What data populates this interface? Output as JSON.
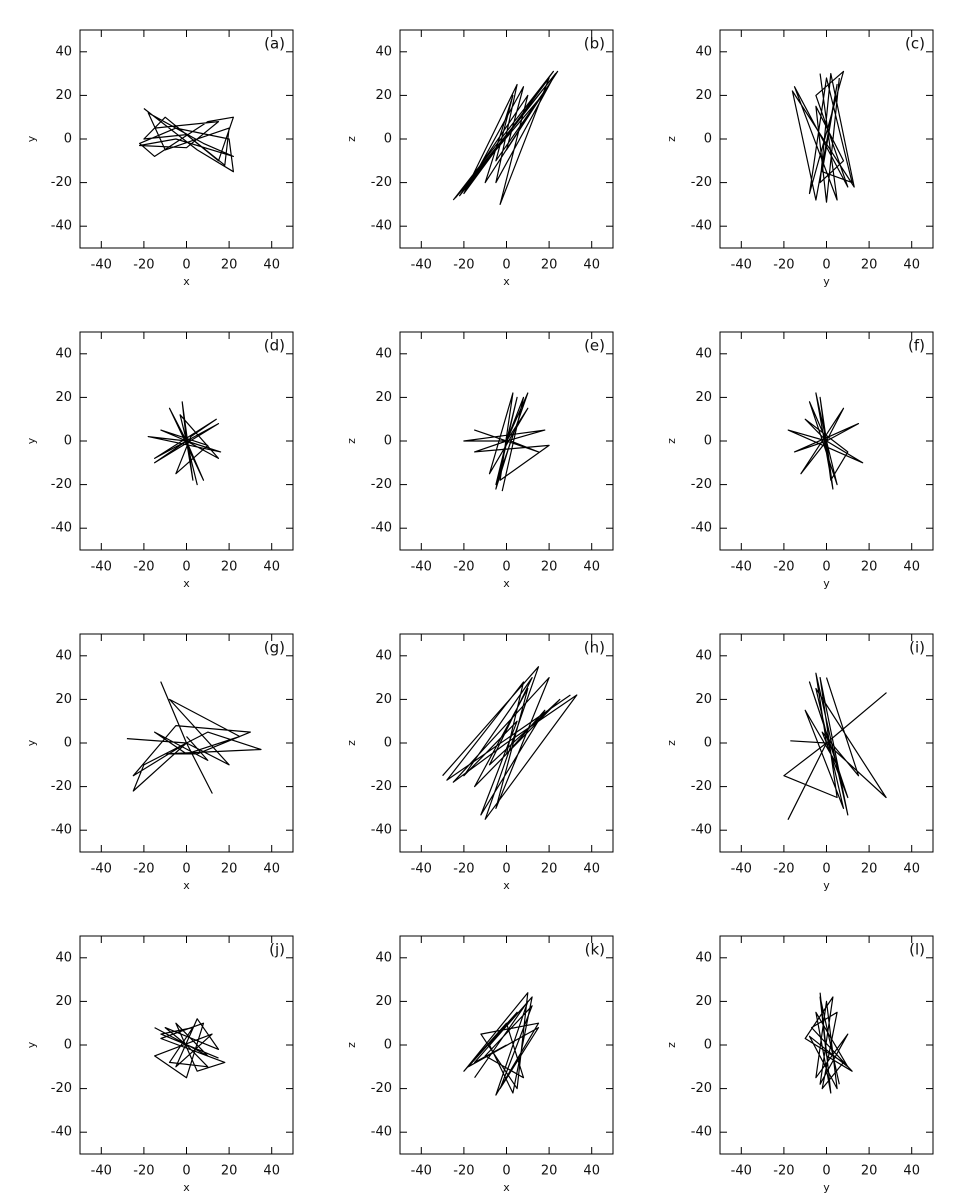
{
  "chart_data": [
    {
      "type": "line",
      "annotation": "(a)",
      "xlabel": "x",
      "ylabel": "y",
      "color": "#000000",
      "xlim": [
        -50,
        50
      ],
      "ylim": [
        -50,
        50
      ],
      "xticks": [
        -40,
        -20,
        0,
        20,
        40
      ],
      "yticks": [
        -40,
        -20,
        0,
        20,
        40
      ],
      "x": [
        -20,
        5,
        22,
        20,
        -5,
        -22,
        -15,
        10,
        22,
        15,
        -10,
        -20,
        0,
        18,
        20,
        -10,
        -18,
        8,
        22,
        -5,
        -22,
        0,
        15,
        -15
      ],
      "values": [
        14,
        -5,
        -15,
        0,
        5,
        -2,
        -8,
        8,
        10,
        -10,
        10,
        0,
        2,
        -12,
        5,
        -5,
        12,
        -2,
        -8,
        0,
        -3,
        -4,
        8,
        5
      ]
    },
    {
      "type": "line",
      "annotation": "(b)",
      "xlabel": "x",
      "ylabel": "z",
      "color": "#000000",
      "xlim": [
        -50,
        50
      ],
      "ylim": [
        -50,
        50
      ],
      "xticks": [
        -40,
        -20,
        0,
        20,
        40
      ],
      "yticks": [
        -40,
        -20,
        0,
        20,
        40
      ],
      "x": [
        -25,
        22,
        -20,
        5,
        -5,
        23,
        -22,
        10,
        -3,
        20,
        -18,
        8,
        0,
        24,
        -24,
        15,
        -10,
        3,
        -5,
        20
      ],
      "values": [
        -28,
        31,
        -25,
        25,
        -20,
        30,
        -26,
        20,
        -30,
        28,
        -22,
        24,
        -5,
        31,
        -27,
        18,
        -20,
        20,
        -10,
        25
      ]
    },
    {
      "type": "line",
      "annotation": "(c)",
      "xlabel": "y",
      "ylabel": "z",
      "color": "#000000",
      "xlim": [
        -50,
        50
      ],
      "ylim": [
        -50,
        50
      ],
      "xticks": [
        -40,
        -20,
        0,
        20,
        40
      ],
      "yticks": [
        -40,
        -20,
        0,
        20,
        40
      ],
      "x": [
        -3,
        5,
        -15,
        10,
        -5,
        8,
        -8,
        0,
        12,
        -2,
        5,
        -5,
        -16,
        13,
        2,
        -3,
        8,
        -5,
        0,
        6
      ],
      "values": [
        30,
        -28,
        24,
        -22,
        20,
        31,
        -25,
        28,
        -20,
        -15,
        25,
        -28,
        22,
        -22,
        30,
        -20,
        -10,
        15,
        -29,
        28
      ]
    },
    {
      "type": "line",
      "annotation": "(d)",
      "xlabel": "x",
      "ylabel": "y",
      "color": "#000000",
      "xlim": [
        -50,
        50
      ],
      "ylim": [
        -50,
        50
      ],
      "xticks": [
        -40,
        -20,
        0,
        20,
        40
      ],
      "yticks": [
        -40,
        -20,
        0,
        20,
        40
      ],
      "x": [
        0,
        -15,
        15,
        0,
        -2,
        3,
        0,
        -18,
        16,
        0,
        8,
        -8,
        0,
        -15,
        14,
        2,
        -5,
        10,
        -12,
        0,
        15,
        -3,
        5,
        0
      ],
      "values": [
        0,
        -10,
        8,
        0,
        18,
        -18,
        0,
        2,
        -5,
        0,
        -18,
        15,
        0,
        -8,
        10,
        2,
        -15,
        -2,
        5,
        0,
        -8,
        12,
        -20,
        0
      ]
    },
    {
      "type": "line",
      "annotation": "(e)",
      "xlabel": "x",
      "ylabel": "z",
      "color": "#000000",
      "xlim": [
        -50,
        50
      ],
      "ylim": [
        -50,
        50
      ],
      "xticks": [
        -40,
        -20,
        0,
        20,
        40
      ],
      "yticks": [
        -40,
        -20,
        0,
        20,
        40
      ],
      "x": [
        0,
        10,
        -5,
        0,
        -20,
        18,
        0,
        5,
        -5,
        2,
        15,
        -15,
        0,
        10,
        -8,
        3,
        -3,
        20,
        -15,
        0,
        8,
        -2
      ],
      "values": [
        0,
        22,
        -20,
        0,
        0,
        5,
        0,
        20,
        -22,
        0,
        -5,
        5,
        0,
        15,
        -15,
        22,
        -18,
        -2,
        -5,
        0,
        20,
        -23
      ]
    },
    {
      "type": "line",
      "annotation": "(f)",
      "xlabel": "y",
      "ylabel": "z",
      "color": "#000000",
      "xlim": [
        -50,
        50
      ],
      "ylim": [
        -50,
        50
      ],
      "xticks": [
        -40,
        -20,
        0,
        20,
        40
      ],
      "yticks": [
        -40,
        -20,
        0,
        20,
        40
      ],
      "x": [
        0,
        -5,
        3,
        0,
        -18,
        17,
        0,
        -8,
        5,
        0,
        15,
        -15,
        0,
        -3,
        2,
        10,
        -10,
        0,
        -12,
        8,
        0
      ],
      "values": [
        0,
        22,
        -22,
        0,
        5,
        -10,
        0,
        18,
        -20,
        0,
        8,
        -5,
        0,
        20,
        -18,
        -5,
        10,
        0,
        -15,
        15,
        0
      ]
    },
    {
      "type": "line",
      "annotation": "(g)",
      "xlabel": "x",
      "ylabel": "y",
      "color": "#000000",
      "xlim": [
        -50,
        50
      ],
      "ylim": [
        -50,
        50
      ],
      "xticks": [
        -40,
        -20,
        0,
        20,
        40
      ],
      "yticks": [
        -40,
        -20,
        0,
        20,
        40
      ],
      "x": [
        -28,
        0,
        -12,
        0,
        12,
        0,
        -25,
        -5,
        30,
        5,
        -10,
        35,
        10,
        -20,
        -25,
        0,
        20,
        -8,
        25,
        0,
        -15,
        10,
        0
      ],
      "values": [
        2,
        0,
        28,
        0,
        -23,
        0,
        -15,
        8,
        5,
        -5,
        -5,
        -3,
        5,
        -10,
        -22,
        0,
        -10,
        20,
        3,
        -5,
        5,
        -8,
        3
      ]
    },
    {
      "type": "line",
      "annotation": "(h)",
      "xlabel": "x",
      "ylabel": "z",
      "color": "#000000",
      "xlim": [
        -50,
        50
      ],
      "ylim": [
        -50,
        50
      ],
      "xticks": [
        -40,
        -20,
        0,
        20,
        40
      ],
      "yticks": [
        -40,
        -20,
        0,
        20,
        40
      ],
      "x": [
        -30,
        15,
        -10,
        33,
        0,
        -25,
        20,
        -5,
        10,
        -15,
        25,
        -8,
        12,
        -20,
        5,
        -12,
        18,
        0,
        8,
        -28,
        30
      ],
      "values": [
        -15,
        35,
        -35,
        22,
        0,
        -18,
        30,
        -30,
        25,
        -20,
        20,
        -10,
        30,
        -15,
        10,
        -33,
        15,
        -5,
        28,
        -17,
        22
      ]
    },
    {
      "type": "line",
      "annotation": "(i)",
      "xlabel": "y",
      "ylabel": "z",
      "color": "#000000",
      "xlim": [
        -50,
        50
      ],
      "ylim": [
        -50,
        50
      ],
      "xticks": [
        -40,
        -20,
        0,
        20,
        40
      ],
      "yticks": [
        -40,
        -20,
        0,
        20,
        40
      ],
      "x": [
        -17,
        0,
        -18,
        0,
        28,
        0,
        -5,
        10,
        -3,
        5,
        -20,
        0,
        28,
        -5,
        8,
        -10,
        5,
        -8,
        10,
        -2,
        15,
        0
      ],
      "values": [
        1,
        0,
        -35,
        0,
        23,
        0,
        32,
        -33,
        30,
        -25,
        -15,
        0,
        -25,
        25,
        -30,
        15,
        -10,
        28,
        -25,
        5,
        -15,
        30
      ]
    },
    {
      "type": "line",
      "annotation": "(j)",
      "xlabel": "x",
      "ylabel": "y",
      "color": "#000000",
      "xlim": [
        -50,
        50
      ],
      "ylim": [
        -50,
        50
      ],
      "xticks": [
        -40,
        -20,
        0,
        20,
        40
      ],
      "yticks": [
        -40,
        -20,
        0,
        20,
        40
      ],
      "x": [
        -15,
        10,
        -5,
        5,
        18,
        -12,
        8,
        0,
        -15,
        12,
        -5,
        5,
        15,
        -10,
        0,
        10,
        -8,
        3,
        -12,
        15
      ],
      "values": [
        8,
        -5,
        10,
        -12,
        -8,
        3,
        10,
        -15,
        -5,
        5,
        -10,
        12,
        -2,
        8,
        0,
        -10,
        -8,
        8,
        5,
        -6
      ]
    },
    {
      "type": "line",
      "annotation": "(k)",
      "xlabel": "x",
      "ylabel": "z",
      "color": "#000000",
      "xlim": [
        -50,
        50
      ],
      "ylim": [
        -50,
        50
      ],
      "xticks": [
        -40,
        -20,
        0,
        20,
        40
      ],
      "yticks": [
        -40,
        -20,
        0,
        20,
        40
      ],
      "x": [
        -15,
        10,
        -5,
        15,
        -12,
        5,
        10,
        -20,
        0,
        8,
        -10,
        12,
        -3,
        15,
        -18,
        5,
        -8,
        3,
        12,
        -15,
        0
      ],
      "values": [
        -15,
        20,
        -23,
        10,
        5,
        -20,
        24,
        -12,
        10,
        -15,
        -5,
        18,
        -20,
        8,
        -10,
        15,
        0,
        -22,
        22,
        -8,
        0
      ]
    },
    {
      "type": "line",
      "annotation": "(l)",
      "xlabel": "y",
      "ylabel": "z",
      "color": "#000000",
      "xlim": [
        -50,
        50
      ],
      "ylim": [
        -50,
        50
      ],
      "xticks": [
        -40,
        -20,
        0,
        20,
        40
      ],
      "yticks": [
        -40,
        -20,
        0,
        20,
        40
      ],
      "x": [
        -3,
        2,
        -5,
        10,
        -8,
        5,
        0,
        -5,
        10,
        -3,
        3,
        -10,
        8,
        -2,
        5,
        -7,
        12,
        0,
        -3,
        6
      ],
      "values": [
        24,
        -22,
        15,
        -10,
        4,
        -20,
        20,
        -15,
        5,
        -18,
        22,
        3,
        -8,
        -20,
        15,
        8,
        -12,
        -5,
        22,
        -18
      ]
    }
  ]
}
